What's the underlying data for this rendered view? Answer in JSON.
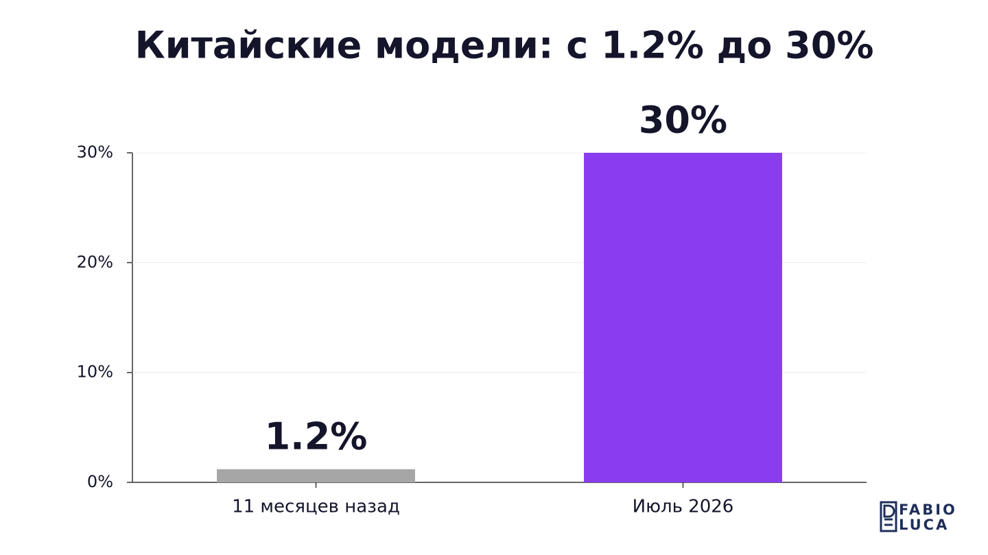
{
  "chart_data": {
    "type": "bar",
    "title": "Китайские модели: с 1.2% до 30%",
    "categories": [
      "11 месяцев назад",
      "Июль 2026"
    ],
    "values": [
      1.2,
      30
    ],
    "value_labels": [
      "1.2%",
      "30%"
    ],
    "colors": [
      "#a6a6a6",
      "#8a3cef"
    ],
    "ylim": [
      0,
      30
    ],
    "yticks": [
      {
        "value": 0,
        "label": "0%"
      },
      {
        "value": 10,
        "label": "10%"
      },
      {
        "value": 20,
        "label": "20%"
      },
      {
        "value": 30,
        "label": "30%"
      }
    ],
    "grid": true
  },
  "logo": [
    "FABIO",
    "LUCA"
  ]
}
